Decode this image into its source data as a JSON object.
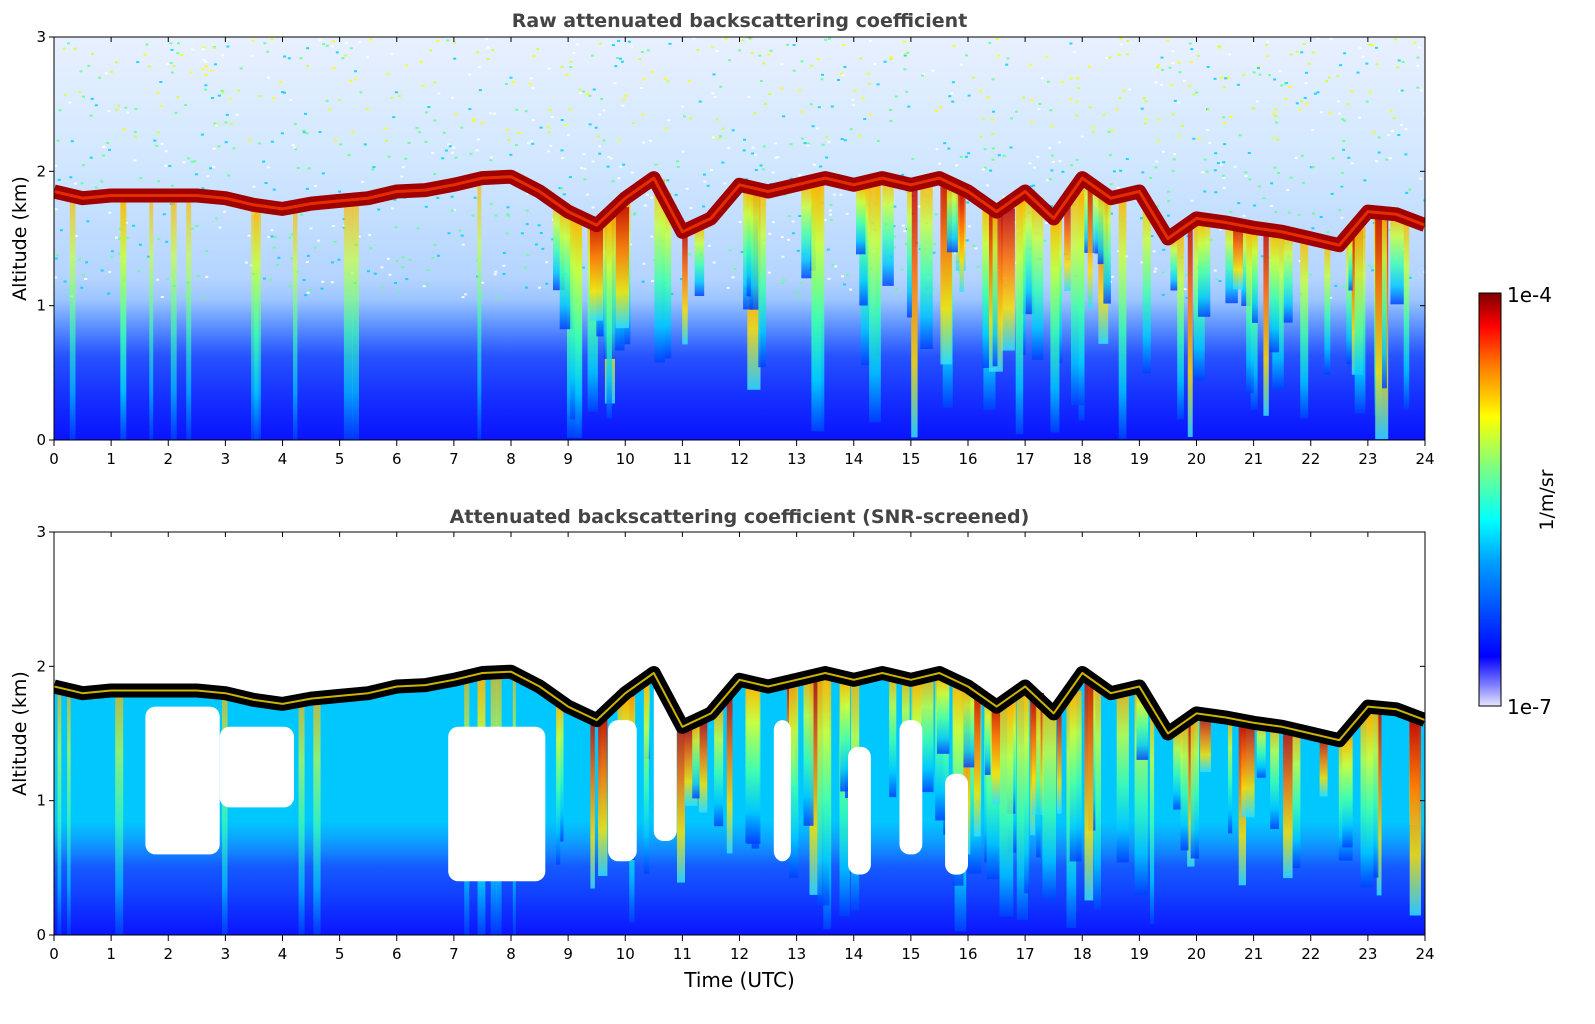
{
  "chart_data": [
    {
      "type": "heatmap",
      "title": "Raw attenuated backscattering coefficient",
      "xlabel": "",
      "ylabel": "Altitude (km)",
      "xlim": [
        0,
        24
      ],
      "ylim": [
        0,
        3
      ],
      "x_ticks": [
        "0",
        "1",
        "2",
        "3",
        "4",
        "5",
        "6",
        "7",
        "8",
        "9",
        "10",
        "11",
        "12",
        "13",
        "14",
        "15",
        "16",
        "17",
        "18",
        "19",
        "20",
        "21",
        "22",
        "23",
        "24"
      ],
      "y_ticks": [
        "0",
        "1",
        "2",
        "3"
      ],
      "colorscale": "jet",
      "cloud_base_km": {
        "time_utc": [
          0,
          0.5,
          1,
          1.5,
          2,
          2.5,
          3,
          3.5,
          4,
          4.5,
          5,
          5.5,
          6,
          6.5,
          7,
          7.5,
          8,
          8.5,
          9,
          9.5,
          10,
          10.5,
          11,
          11.5,
          12,
          12.5,
          13,
          13.5,
          14,
          14.5,
          15,
          15.5,
          16,
          16.5,
          17,
          17.5,
          18,
          18.5,
          19,
          19.5,
          20,
          20.5,
          21,
          21.5,
          22,
          22.5,
          23,
          23.5,
          24
        ],
        "altitude": [
          1.85,
          1.8,
          1.82,
          1.82,
          1.82,
          1.82,
          1.8,
          1.75,
          1.72,
          1.76,
          1.78,
          1.8,
          1.85,
          1.86,
          1.9,
          1.95,
          1.96,
          1.85,
          1.7,
          1.6,
          1.8,
          1.95,
          1.55,
          1.65,
          1.9,
          1.85,
          1.9,
          1.95,
          1.9,
          1.95,
          1.9,
          1.95,
          1.85,
          1.7,
          1.85,
          1.65,
          1.95,
          1.8,
          1.85,
          1.5,
          1.65,
          1.62,
          1.58,
          1.55,
          1.5,
          1.45,
          1.7,
          1.68,
          1.6
        ]
      }
    },
    {
      "type": "heatmap",
      "title": "Attenuated backscattering coefficient (SNR-screened)",
      "xlabel": "Time (UTC)",
      "ylabel": "Altitude (km)",
      "xlim": [
        0,
        24
      ],
      "ylim": [
        0,
        3
      ],
      "x_ticks": [
        "0",
        "1",
        "2",
        "3",
        "4",
        "5",
        "6",
        "7",
        "8",
        "9",
        "10",
        "11",
        "12",
        "13",
        "14",
        "15",
        "16",
        "17",
        "18",
        "19",
        "20",
        "21",
        "22",
        "23",
        "24"
      ],
      "y_ticks": [
        "0",
        "1",
        "2",
        "3"
      ],
      "colorscale": "jet",
      "screened_color": "#ffffff",
      "saturated_color": "#000000"
    }
  ],
  "colorbar": {
    "max_label": "1e-4",
    "min_label": "1e-7",
    "unit_label": "1/m/sr",
    "scale": "log",
    "range": [
      1e-07,
      0.0001
    ]
  },
  "colors": {
    "jet": [
      "#00007f",
      "#0000ff",
      "#007fff",
      "#00ffff",
      "#7fff7f",
      "#ffff00",
      "#ff7f00",
      "#ff0000",
      "#7f0000"
    ],
    "title_text": "#444444",
    "axis_text": "#000000"
  }
}
